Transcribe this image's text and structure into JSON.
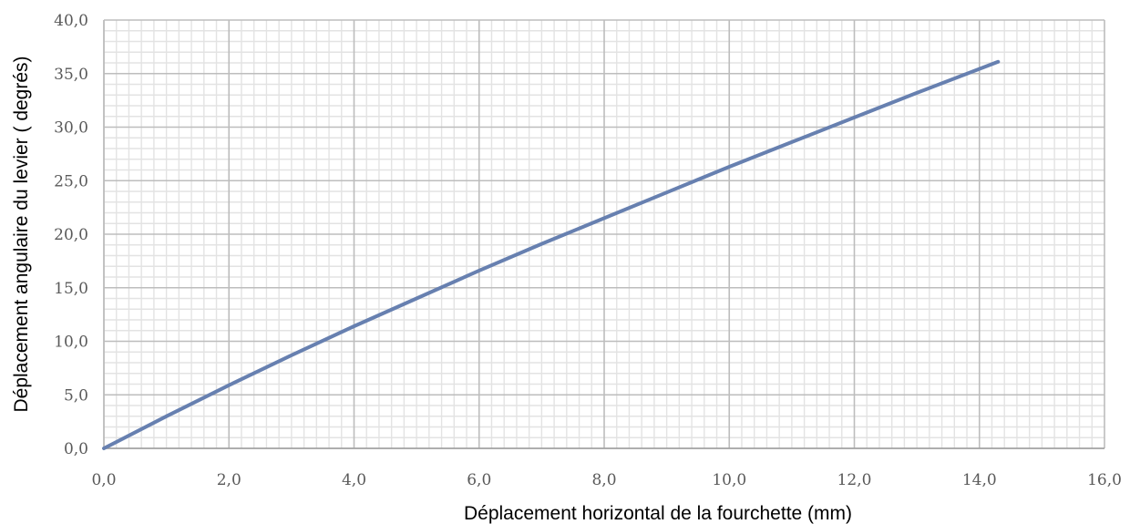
{
  "chart_data": {
    "type": "line",
    "title": "",
    "xlabel": "Déplacement horizontal de la fourchette (mm)",
    "ylabel": "Déplacement angulaire du levier ( degrés)",
    "xlim": [
      0,
      16
    ],
    "ylim": [
      0,
      40
    ],
    "x_ticks": [
      "0,0",
      "2,0",
      "4,0",
      "6,0",
      "8,0",
      "10,0",
      "12,0",
      "14,0",
      "16,0"
    ],
    "y_ticks": [
      "0,0",
      "5,0",
      "10,0",
      "15,0",
      "20,0",
      "25,0",
      "30,0",
      "35,0",
      "40,0"
    ],
    "grid": true,
    "legend": "none",
    "series": [
      {
        "color": "#6780b0",
        "x": [
          0,
          1,
          2,
          3,
          4,
          5,
          6,
          7,
          8,
          9,
          10,
          11,
          12,
          13,
          14.3
        ],
        "y": [
          0,
          3.0,
          5.9,
          8.7,
          11.4,
          14.0,
          16.6,
          19.1,
          21.5,
          23.9,
          26.3,
          28.6,
          30.9,
          33.2,
          36.1
        ]
      }
    ]
  }
}
